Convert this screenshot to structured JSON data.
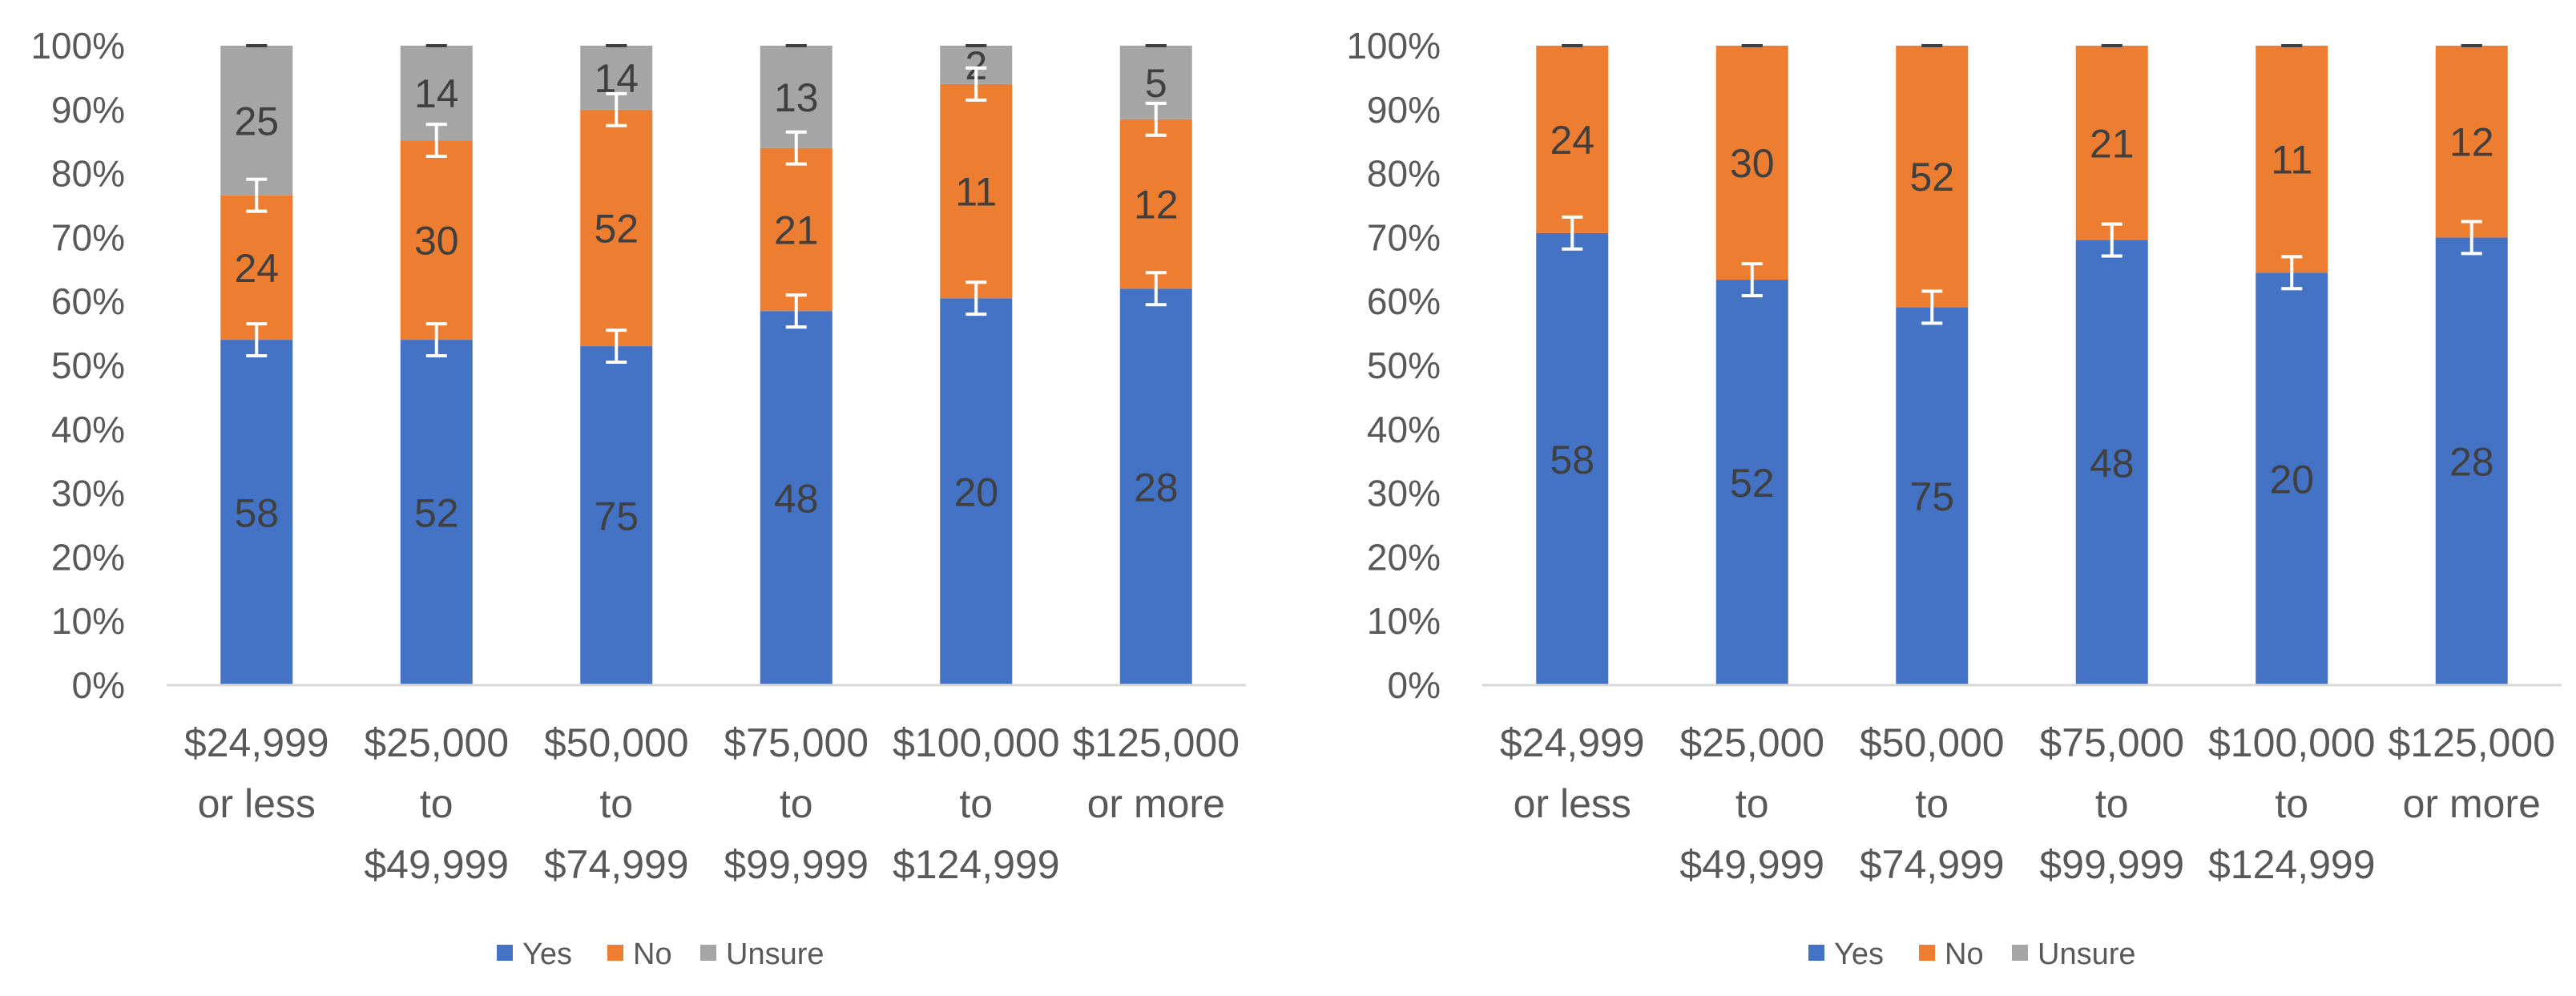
{
  "chart_data": [
    {
      "type": "bar",
      "stacked": true,
      "percent": true,
      "title": "",
      "xlabel": "",
      "ylabel": "",
      "ylim": [
        0,
        100
      ],
      "yticks": [
        "0%",
        "10%",
        "20%",
        "30%",
        "40%",
        "50%",
        "60%",
        "70%",
        "80%",
        "90%",
        "100%"
      ],
      "categories": [
        [
          "$24,999",
          "or less"
        ],
        [
          "$25,000",
          "to",
          "$49,999"
        ],
        [
          "$50,000",
          "to",
          "$74,999"
        ],
        [
          "$75,000",
          "to",
          "$99,999"
        ],
        [
          "$100,000",
          "to",
          "$124,999"
        ],
        [
          "$125,000",
          "or more"
        ]
      ],
      "series": [
        {
          "name": "Yes",
          "color": "#4472C4",
          "counts": [
            "58",
            "52",
            "75",
            "48",
            "20",
            "28"
          ],
          "percent": [
            54,
            54,
            53,
            58.5,
            60.5,
            62
          ]
        },
        {
          "name": "No",
          "color": "#ED7D31",
          "counts": [
            "24",
            "30",
            "52",
            "21",
            "11",
            "12"
          ],
          "percent": [
            22.6,
            31.2,
            37,
            25.5,
            33.5,
            26.5
          ]
        },
        {
          "name": "Unsure",
          "color": "#A5A5A5",
          "counts": [
            "25",
            "14",
            "14",
            "13",
            "2",
            "5"
          ],
          "percent": [
            23.4,
            14.8,
            10,
            16,
            6,
            11.5
          ]
        }
      ],
      "error_bar_margin": 2.5,
      "legend_position": "bottom"
    },
    {
      "type": "bar",
      "stacked": true,
      "percent": true,
      "title": "",
      "xlabel": "",
      "ylabel": "",
      "ylim": [
        0,
        100
      ],
      "yticks": [
        "0%",
        "10%",
        "20%",
        "30%",
        "40%",
        "50%",
        "60%",
        "70%",
        "80%",
        "90%",
        "100%"
      ],
      "categories": [
        [
          "$24,999",
          "or less"
        ],
        [
          "$25,000",
          "to",
          "$49,999"
        ],
        [
          "$50,000",
          "to",
          "$74,999"
        ],
        [
          "$75,000",
          "to",
          "$99,999"
        ],
        [
          "$100,000",
          "to",
          "$124,999"
        ],
        [
          "$125,000",
          "or more"
        ]
      ],
      "series": [
        {
          "name": "Yes",
          "color": "#4472C4",
          "counts": [
            "58",
            "52",
            "75",
            "48",
            "20",
            "28"
          ],
          "percent": [
            70.7,
            63.4,
            59.1,
            69.6,
            64.5,
            70
          ]
        },
        {
          "name": "No",
          "color": "#ED7D31",
          "counts": [
            "24",
            "30",
            "52",
            "21",
            "11",
            "12"
          ],
          "percent": [
            29.3,
            36.6,
            40.9,
            30.4,
            35.5,
            30
          ]
        },
        {
          "name": "Unsure",
          "color": "#A5A5A5",
          "counts": [
            "",
            "",
            "",
            "",
            "",
            ""
          ],
          "percent": [
            0,
            0,
            0,
            0,
            0,
            0
          ]
        }
      ],
      "error_bar_margin": 2.5,
      "legend_position": "bottom"
    }
  ]
}
